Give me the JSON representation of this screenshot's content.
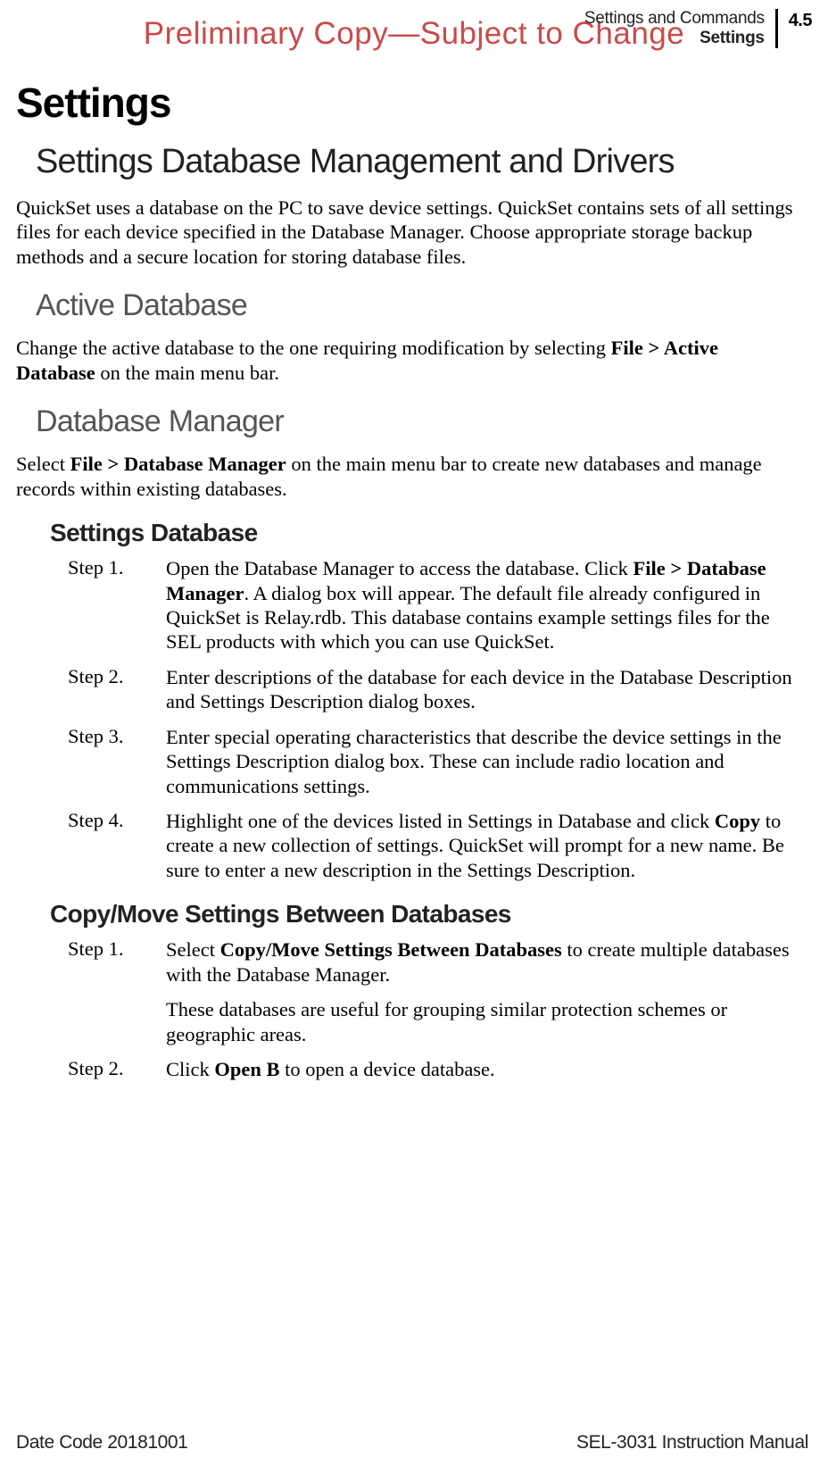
{
  "watermark": "Preliminary Copy—Subject to Change",
  "header": {
    "chapter": "Settings and Commands",
    "section": "Settings",
    "page_number": "4.5"
  },
  "h1": "Settings",
  "h2": "Settings Database Management and Drivers",
  "intro_p": "QuickSet uses a database on the PC to save device settings. QuickSet contains sets of all settings files for each device specified in the Database Manager. Choose appropriate storage backup methods and a secure location for storing database files.",
  "s_active": {
    "title": "Active Database",
    "p_pre": "Change the active database to the one requiring modification by selecting ",
    "p_bold": "File > Active Database",
    "p_post": " on the main menu bar."
  },
  "s_dbm": {
    "title": "Database Manager",
    "p_pre": "Select ",
    "p_bold": "File > Database Manager",
    "p_post": " on the main menu bar to create new databases and manage records within existing databases."
  },
  "s_sd": {
    "title": "Settings Database",
    "step1": {
      "label": "Step 1.",
      "pre": "Open the Database Manager to access the database. Click ",
      "bold": "File > Database Manager",
      "post": ". A dialog box will appear. The default file already configured in QuickSet is Relay.rdb. This database contains example settings files for the SEL products with which you can use QuickSet."
    },
    "step2": {
      "label": "Step 2.",
      "text": "Enter descriptions of the database for each device in the Database Description and Settings Description dialog boxes."
    },
    "step3": {
      "label": "Step 3.",
      "text": "Enter special operating characteristics that describe the device settings in the Settings Description dialog box. These can include radio location and communications settings."
    },
    "step4": {
      "label": "Step 4.",
      "pre": "Highlight one of the devices listed in Settings in Database and click ",
      "bold": "Copy",
      "post": " to create a new collection of settings. QuickSet will prompt for a new name. Be sure to enter a new description in the Settings Description."
    }
  },
  "s_cm": {
    "title": "Copy/Move Settings Between Databases",
    "step1": {
      "label": "Step 1.",
      "pre": "Select ",
      "bold": "Copy/Move Settings Between Databases",
      "post": " to create multiple databases with the Database Manager.",
      "para2": "These databases are useful for grouping similar protection schemes or geographic areas."
    },
    "step2": {
      "label": "Step 2.",
      "pre": "Click ",
      "bold": "Open B",
      "post": " to open a device database."
    }
  },
  "footer": {
    "left": "Date Code 20181001",
    "right": "SEL-3031 Instruction Manual"
  }
}
